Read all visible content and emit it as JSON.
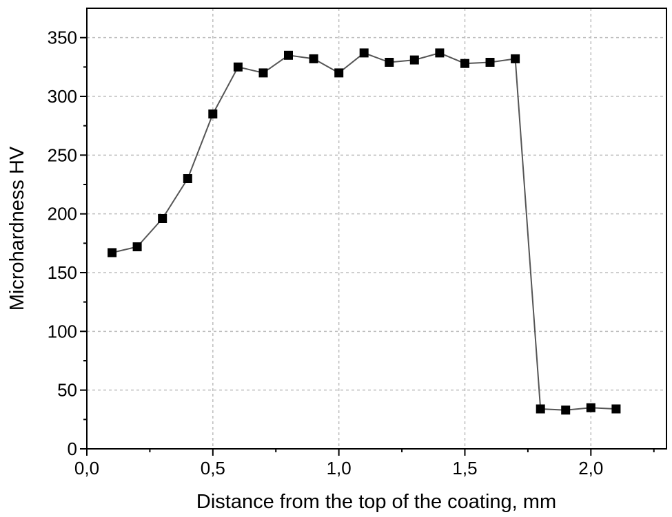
{
  "chart_data": {
    "type": "line",
    "title": "",
    "xlabel": "Distance from the top of the coating, mm",
    "ylabel": "Microhardness HV",
    "xlim": [
      0.0,
      2.3
    ],
    "ylim": [
      0,
      350
    ],
    "y_display_max": 375,
    "xticks": [
      0.0,
      0.5,
      1.0,
      1.5,
      2.0
    ],
    "xtick_labels": [
      "0,0",
      "0,5",
      "1,0",
      "1,5",
      "2,0"
    ],
    "yticks": [
      0,
      50,
      100,
      150,
      200,
      250,
      300,
      350
    ],
    "ytick_labels": [
      "0",
      "50",
      "100",
      "150",
      "200",
      "250",
      "300",
      "350"
    ],
    "grid": true,
    "marker": "square",
    "series": [
      {
        "x": [
          0.1,
          0.2,
          0.3,
          0.4,
          0.5,
          0.6,
          0.7,
          0.8,
          0.9,
          1.0,
          1.1,
          1.2,
          1.3,
          1.4,
          1.5,
          1.6,
          1.7,
          1.8,
          1.9,
          2.0,
          2.1
        ],
        "y": [
          167,
          172,
          196,
          230,
          285,
          325,
          320,
          335,
          332,
          320,
          337,
          329,
          331,
          337,
          328,
          329,
          332,
          34,
          33,
          35,
          34
        ]
      }
    ],
    "colors": {
      "line": "#555555",
      "marker": "#000000",
      "grid": "#bdbdbd",
      "axis": "#000000"
    }
  }
}
